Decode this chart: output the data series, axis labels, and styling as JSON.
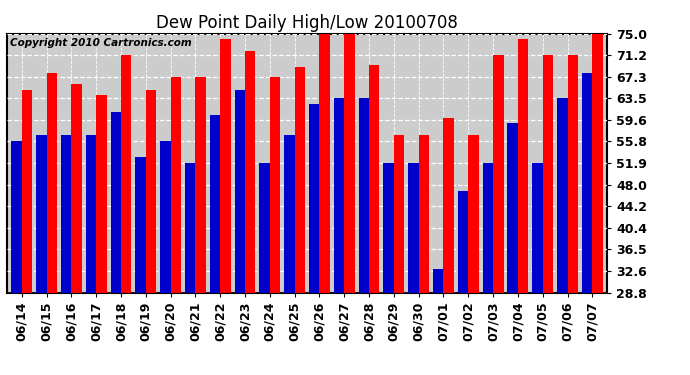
{
  "title": "Dew Point Daily High/Low 20100708",
  "copyright": "Copyright 2010 Cartronics.com",
  "categories": [
    "06/14",
    "06/15",
    "06/16",
    "06/17",
    "06/18",
    "06/19",
    "06/20",
    "06/21",
    "06/22",
    "06/23",
    "06/24",
    "06/25",
    "06/26",
    "06/27",
    "06/28",
    "06/29",
    "06/30",
    "07/01",
    "07/02",
    "07/03",
    "07/04",
    "07/05",
    "07/06",
    "07/07"
  ],
  "highs": [
    65.0,
    68.0,
    66.0,
    64.0,
    71.2,
    65.0,
    67.3,
    67.3,
    74.0,
    72.0,
    67.3,
    69.0,
    75.0,
    75.0,
    69.5,
    57.0,
    57.0,
    60.0,
    57.0,
    71.2,
    74.0,
    71.2,
    71.2,
    75.0
  ],
  "lows": [
    55.8,
    57.0,
    57.0,
    57.0,
    61.0,
    53.0,
    55.8,
    52.0,
    60.5,
    65.0,
    51.9,
    57.0,
    62.5,
    63.5,
    63.5,
    51.9,
    51.9,
    33.0,
    47.0,
    51.9,
    59.0,
    51.9,
    63.5,
    68.0
  ],
  "high_color": "#ff0000",
  "low_color": "#0000cc",
  "bg_color": "#ffffff",
  "plot_bg_color": "#cccccc",
  "grid_color": "#ffffff",
  "ylim_min": 28.8,
  "ylim_max": 75.0,
  "yticks": [
    28.8,
    32.6,
    36.5,
    40.4,
    44.2,
    48.0,
    51.9,
    55.8,
    59.6,
    63.5,
    67.3,
    71.2,
    75.0
  ],
  "title_fontsize": 12,
  "tick_fontsize": 9,
  "copyright_fontsize": 7.5
}
